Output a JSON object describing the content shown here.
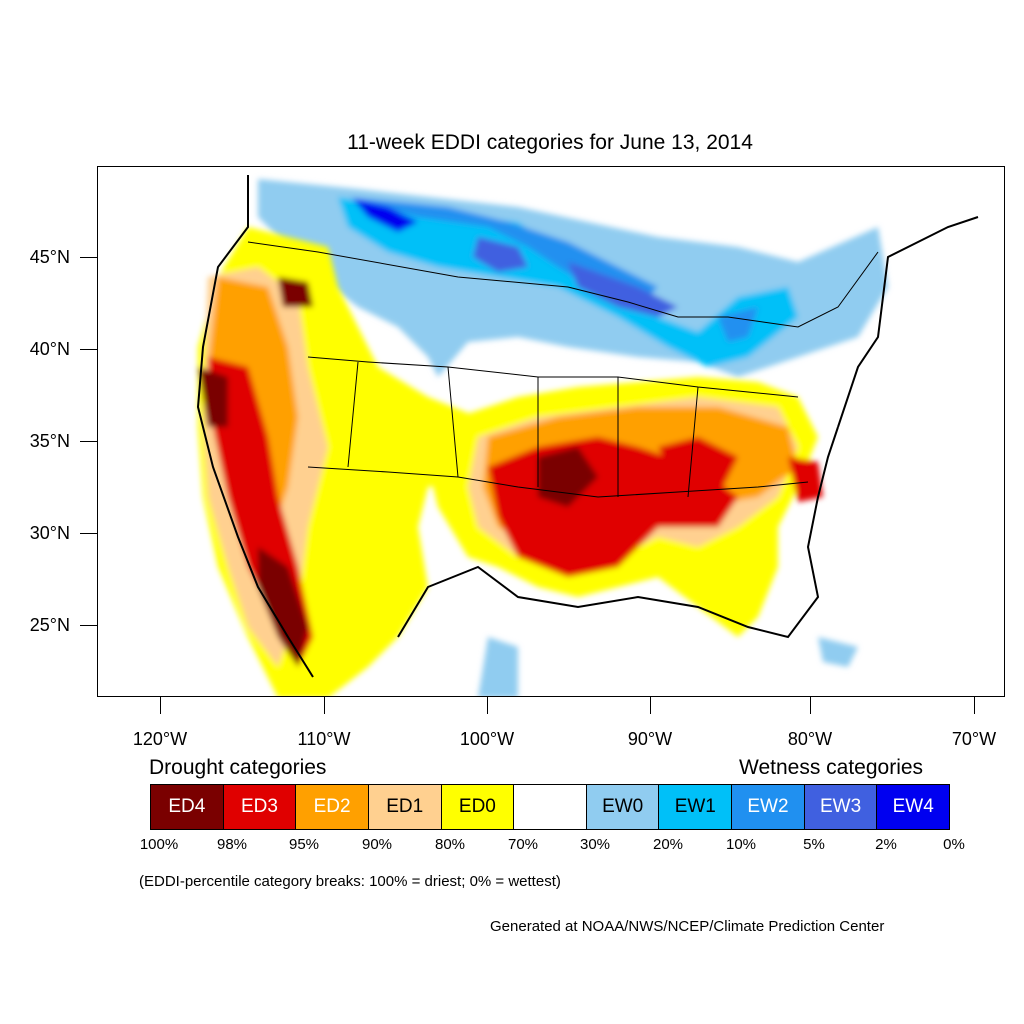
{
  "title": "11-week EDDI categories for June 13, 2014",
  "lat_labels": [
    "45°N",
    "40°N",
    "35°N",
    "30°N",
    "25°N"
  ],
  "lon_labels": [
    "120°W",
    "110°W",
    "100°W",
    "90°W",
    "80°W",
    "70°W"
  ],
  "legend": {
    "drought_heading": "Drought categories",
    "wetness_heading": "Wetness categories",
    "categories": [
      {
        "label": "ED4",
        "color": "#7a0000",
        "text_color": "#ffffff"
      },
      {
        "label": "ED3",
        "color": "#e00000",
        "text_color": "#ffffff"
      },
      {
        "label": "ED2",
        "color": "#ffa000",
        "text_color": "#ffffff"
      },
      {
        "label": "ED1",
        "color": "#ffd090",
        "text_color": "#000000"
      },
      {
        "label": "ED0",
        "color": "#ffff00",
        "text_color": "#000000"
      },
      {
        "label": "",
        "color": "#ffffff",
        "text_color": "#000000"
      },
      {
        "label": "EW0",
        "color": "#90ccf0",
        "text_color": "#000000"
      },
      {
        "label": "EW1",
        "color": "#00c0f8",
        "text_color": "#000000"
      },
      {
        "label": "EW2",
        "color": "#2090f0",
        "text_color": "#ffffff"
      },
      {
        "label": "EW3",
        "color": "#4060e0",
        "text_color": "#ffffff"
      },
      {
        "label": "EW4",
        "color": "#0000f0",
        "text_color": "#ffffff"
      }
    ],
    "breaks": [
      "100%",
      "98%",
      "95%",
      "90%",
      "80%",
      "70%",
      "30%",
      "20%",
      "10%",
      "5%",
      "2%",
      "0%"
    ]
  },
  "breaks_note": "(EDDI-percentile category breaks: 100% = driest; 0% = wettest)",
  "credit": "Generated at NOAA/NWS/NCEP/Climate Prediction Center"
}
